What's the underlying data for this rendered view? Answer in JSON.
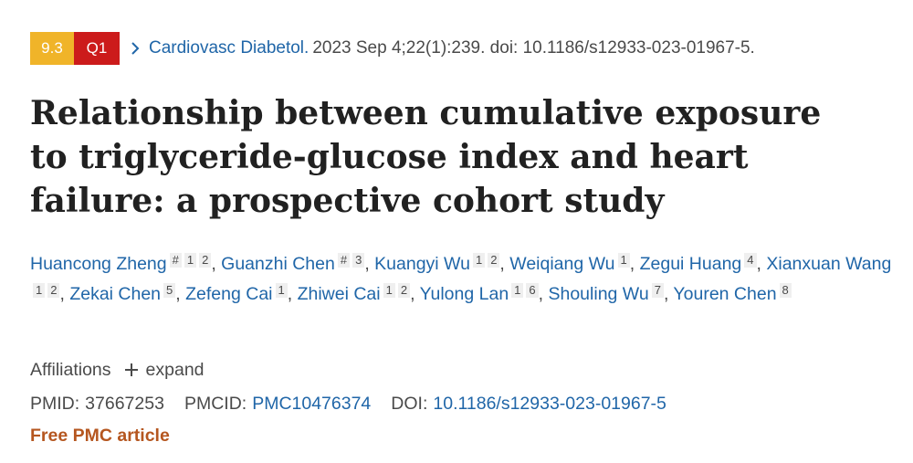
{
  "citation": {
    "impact_factor": "9.3",
    "quartile": "Q1",
    "journal": "Cardiovasc Diabetol.",
    "details": "2023 Sep 4;22(1):239. doi: 10.1186/s12933-023-01967-5."
  },
  "title": "Relationship between cumulative exposure to triglyceride-glucose index and heart failure: a prospective cohort study",
  "authors": [
    {
      "name": "Huancong Zheng",
      "marks": "# 1 2"
    },
    {
      "name": "Guanzhi Chen",
      "marks": "# 3"
    },
    {
      "name": "Kuangyi Wu",
      "marks": "1 2"
    },
    {
      "name": "Weiqiang Wu",
      "marks": "1"
    },
    {
      "name": "Zegui Huang",
      "marks": "4"
    },
    {
      "name": "Xianxuan Wang",
      "marks": "1 2"
    },
    {
      "name": "Zekai Chen",
      "marks": "5"
    },
    {
      "name": "Zefeng Cai",
      "marks": "1"
    },
    {
      "name": "Zhiwei Cai",
      "marks": "1 2"
    },
    {
      "name": "Yulong Lan",
      "marks": "1 6"
    },
    {
      "name": "Shouling Wu",
      "marks": "7"
    },
    {
      "name": "Youren Chen",
      "marks": "8"
    }
  ],
  "affiliations": {
    "label": "Affiliations",
    "expand": "expand"
  },
  "ids": {
    "pmid_label": "PMID:",
    "pmid": "37667253",
    "pmcid_label": "PMCID:",
    "pmcid": "PMC10476374",
    "doi_label": "DOI:",
    "doi": "10.1186/s12933-023-01967-5"
  },
  "free_article": "Free PMC article",
  "colors": {
    "link": "#2066a8",
    "impact_badge": "#f0b429",
    "quartile_badge": "#cc1b1b",
    "free_article": "#b5561f"
  },
  "icons": {
    "journal_chevron": "chevron-right-icon",
    "expand": "plus-icon"
  }
}
